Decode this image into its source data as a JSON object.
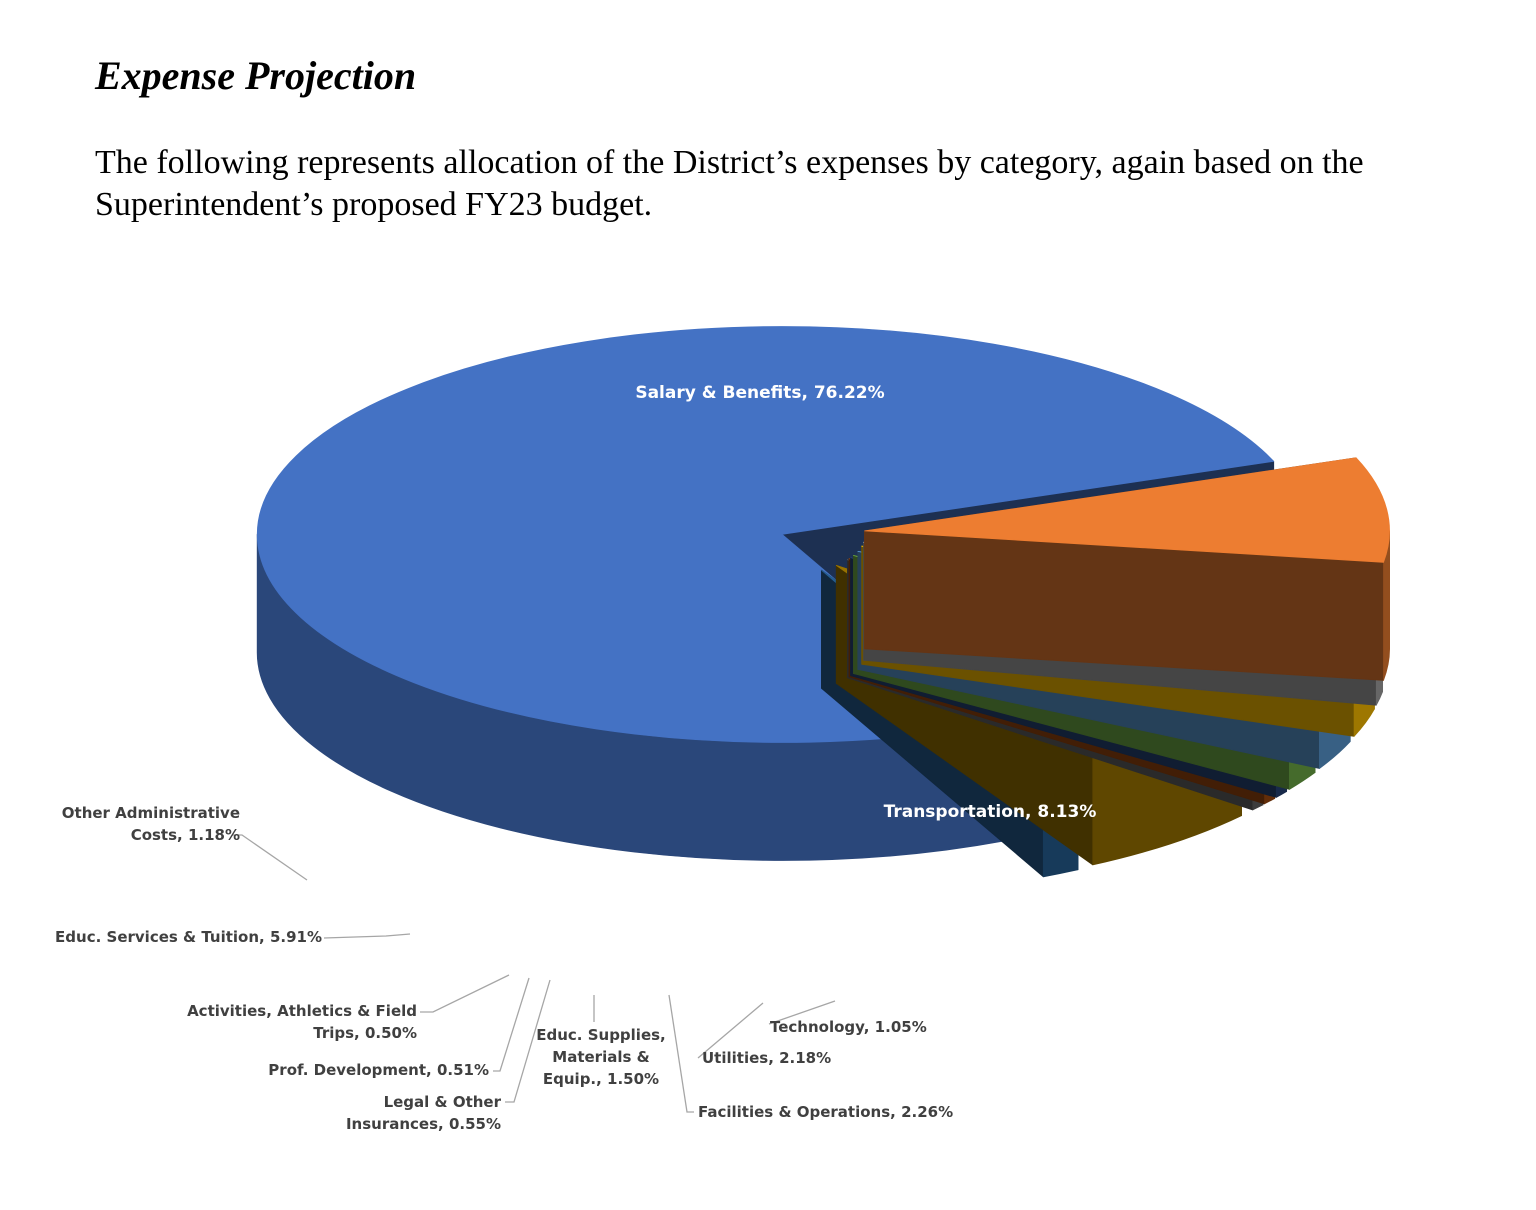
{
  "document": {
    "title": "Expense Projection",
    "intro": "The following represents allocation of the District’s expenses by category, again based on the Superintendent’s proposed FY23 budget."
  },
  "chart_data": {
    "type": "pie",
    "style": "3d-exploded",
    "title": "",
    "unit": "%",
    "slices": [
      {
        "name": "Salary & Benefits",
        "value": 76.22,
        "color": "#4472C4",
        "label_lines": [
          "Salary & Benefits, 76.22%"
        ]
      },
      {
        "name": "Transportation",
        "value": 8.13,
        "color": "#ED7D31",
        "label_lines": [
          "Transportation, 8.13%"
        ]
      },
      {
        "name": "Technology",
        "value": 1.05,
        "color": "#A5A5A5",
        "label_lines": [
          "Technology, 1.05%"
        ]
      },
      {
        "name": "Utilities",
        "value": 2.18,
        "color": "#FFC000",
        "label_lines": [
          "Utilities, 2.18%"
        ]
      },
      {
        "name": "Facilities & Operations",
        "value": 2.26,
        "color": "#5B9BD5",
        "label_lines": [
          "Facilities & Operations, 2.26%"
        ]
      },
      {
        "name": "Educ. Supplies, Materials & Equip.",
        "value": 1.5,
        "color": "#70AD47",
        "label_lines": [
          "Educ. Supplies,",
          "Materials &",
          "Equip., 1.50%"
        ]
      },
      {
        "name": "Legal & Other Insurances",
        "value": 0.55,
        "color": "#264478",
        "label_lines": [
          "Legal & Other",
          "Insurances, 0.55%"
        ]
      },
      {
        "name": "Prof. Development",
        "value": 0.51,
        "color": "#9E480E",
        "label_lines": [
          "Prof. Development, 0.51%"
        ]
      },
      {
        "name": "Activities, Athletics & Field Trips",
        "value": 0.5,
        "color": "#636363",
        "label_lines": [
          "Activities, Athletics & Field",
          "Trips, 0.50%"
        ]
      },
      {
        "name": "Educ. Services & Tuition",
        "value": 5.91,
        "color": "#997300",
        "label_lines": [
          "Educ. Services & Tuition, 5.91%"
        ]
      },
      {
        "name": "Other Administrative Costs",
        "value": 1.18,
        "color": "#255E91",
        "label_lines": [
          "Other Administrative",
          "Costs, 1.18%"
        ]
      }
    ]
  }
}
